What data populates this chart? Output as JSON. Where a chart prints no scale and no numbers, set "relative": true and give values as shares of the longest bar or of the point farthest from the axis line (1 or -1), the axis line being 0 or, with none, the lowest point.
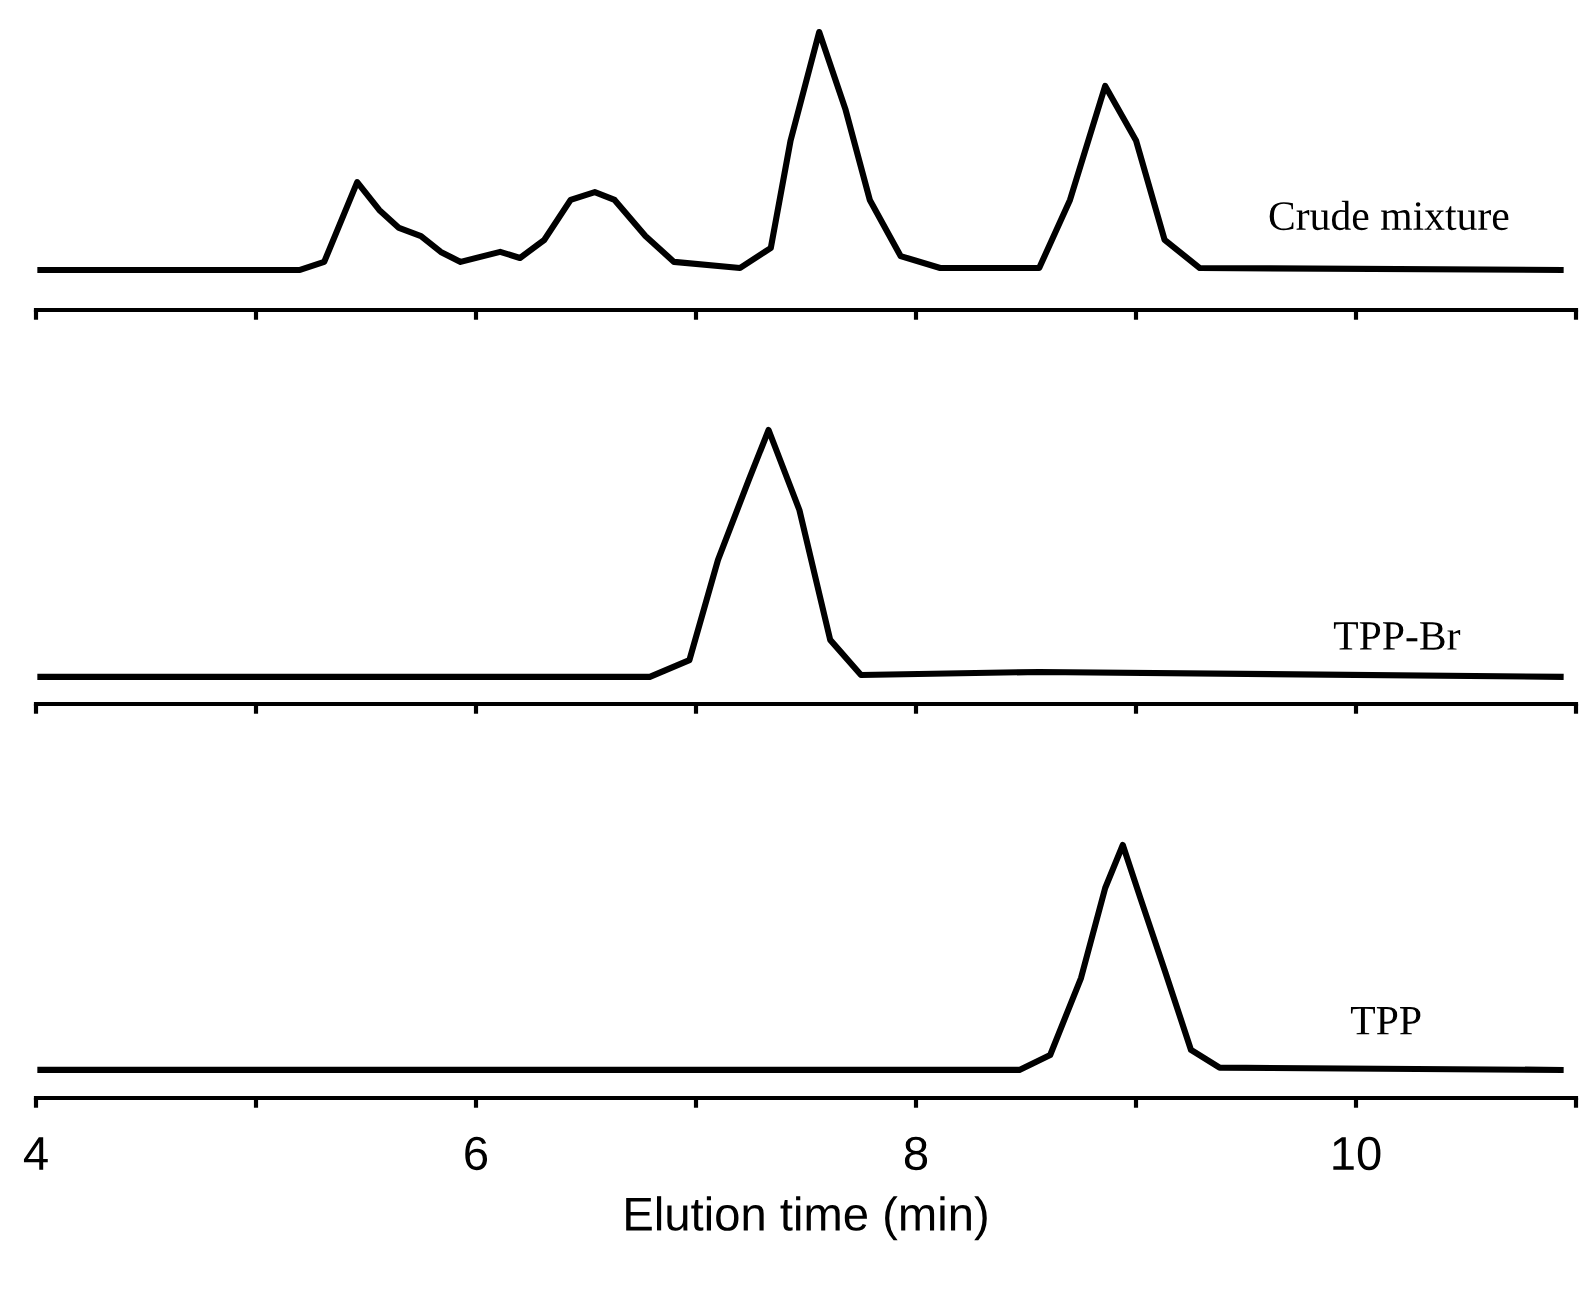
{
  "chart_data": [
    {
      "type": "line",
      "relative": true,
      "xlim": [
        4,
        11
      ],
      "xticks": [
        {
          "value": 4,
          "label": null
        },
        {
          "value": 5,
          "label": null
        },
        {
          "value": 6,
          "label": null
        },
        {
          "value": 7,
          "label": null
        },
        {
          "value": 8,
          "label": null
        },
        {
          "value": 9,
          "label": null
        },
        {
          "value": 10,
          "label": null
        },
        {
          "value": 11,
          "label": null
        }
      ],
      "tick_labels": false,
      "grid": false,
      "legend": false,
      "series": [
        {
          "name": "Crude mixture",
          "color": "#000000",
          "x": [
            4.02,
            5.2,
            5.31,
            5.46,
            5.56,
            5.65,
            5.75,
            5.84,
            5.93,
            6.11,
            6.2,
            6.31,
            6.43,
            6.54,
            6.63,
            6.77,
            6.9,
            7.2,
            7.34,
            7.43,
            7.56,
            7.68,
            7.79,
            7.93,
            8.11,
            8.56,
            8.7,
            8.86,
            9.0,
            9.13,
            9.29,
            10.93
          ],
          "values": [
            0.144,
            0.144,
            0.173,
            0.46,
            0.36,
            0.295,
            0.266,
            0.209,
            0.173,
            0.209,
            0.187,
            0.252,
            0.396,
            0.424,
            0.396,
            0.266,
            0.173,
            0.151,
            0.223,
            0.61,
            1.0,
            0.72,
            0.396,
            0.194,
            0.151,
            0.151,
            0.396,
            0.806,
            0.61,
            0.252,
            0.151,
            0.144
          ]
        }
      ]
    },
    {
      "type": "line",
      "relative": true,
      "xlim": [
        4,
        11
      ],
      "xticks": [
        {
          "value": 4,
          "label": null
        },
        {
          "value": 5,
          "label": null
        },
        {
          "value": 6,
          "label": null
        },
        {
          "value": 7,
          "label": null
        },
        {
          "value": 8,
          "label": null
        },
        {
          "value": 9,
          "label": null
        },
        {
          "value": 10,
          "label": null
        },
        {
          "value": 11,
          "label": null
        }
      ],
      "tick_labels": false,
      "grid": false,
      "legend": false,
      "series": [
        {
          "name": "TPP-Br",
          "color": "#000000",
          "x": [
            4.02,
            6.79,
            6.97,
            7.1,
            7.24,
            7.33,
            7.47,
            7.61,
            7.75,
            8.56,
            10.93
          ],
          "values": [
            0.099,
            0.099,
            0.16,
            0.526,
            0.818,
            1.0,
            0.708,
            0.234,
            0.106,
            0.117,
            0.099
          ]
        }
      ]
    },
    {
      "type": "line",
      "relative": true,
      "xlim": [
        4,
        11
      ],
      "xticks": [
        4,
        {
          "value": 5,
          "label": null
        },
        6,
        {
          "value": 7,
          "label": null
        },
        8,
        {
          "value": 9,
          "label": null
        },
        10,
        {
          "value": 11,
          "label": null
        }
      ],
      "tick_labels": "x",
      "grid": false,
      "legend": false,
      "xlabel": "Elution time (min)",
      "series": [
        {
          "name": "TPP",
          "color": "#000000",
          "x": [
            4.02,
            8.47,
            8.61,
            8.75,
            8.86,
            8.94,
            9.02,
            9.13,
            9.25,
            9.38,
            10.93
          ],
          "values": [
            0.111,
            0.111,
            0.17,
            0.474,
            0.83,
            1.0,
            0.79,
            0.506,
            0.19,
            0.12,
            0.111
          ]
        }
      ]
    }
  ]
}
